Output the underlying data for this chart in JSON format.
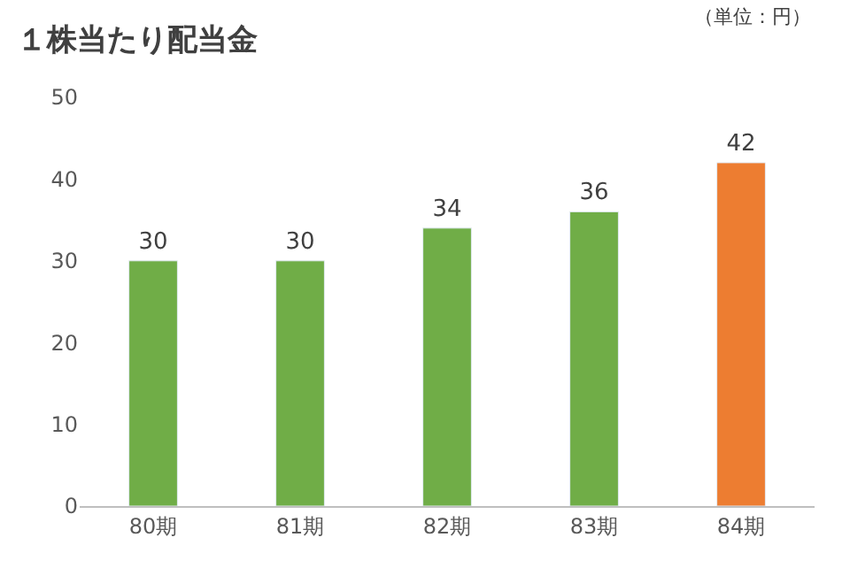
{
  "chart_data": {
    "type": "bar",
    "title": "１株当たり配当金",
    "annotations": [
      "（単位：円）"
    ],
    "categories": [
      "80期",
      "81期",
      "82期",
      "83期",
      "84期"
    ],
    "values": [
      30,
      30,
      34,
      36,
      42
    ],
    "colors": [
      "#70ad47",
      "#70ad47",
      "#70ad47",
      "#70ad47",
      "#ed7d31"
    ],
    "ylim": [
      0,
      50
    ],
    "yticks": [
      0,
      10,
      20,
      30,
      40,
      50
    ],
    "data_labels": true
  }
}
